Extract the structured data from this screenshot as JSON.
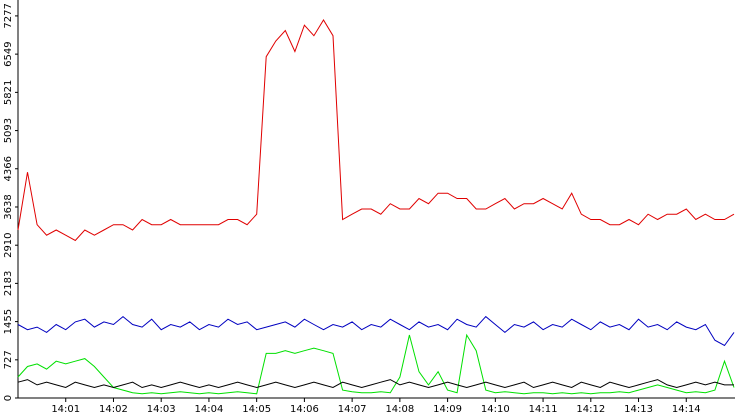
{
  "chart_data": {
    "type": "line",
    "categories": [
      null,
      null,
      null,
      null,
      null,
      "14:01",
      null,
      null,
      null,
      null,
      "14:02",
      null,
      null,
      null,
      null,
      "14:03",
      null,
      null,
      null,
      null,
      "14:04",
      null,
      null,
      null,
      null,
      "14:05",
      null,
      null,
      null,
      null,
      "14:06",
      null,
      null,
      null,
      null,
      "14:07",
      null,
      null,
      null,
      null,
      "14:08",
      null,
      null,
      null,
      null,
      "14:09",
      null,
      null,
      null,
      null,
      "14:10",
      null,
      null,
      null,
      null,
      "14:11",
      null,
      null,
      null,
      null,
      "14:12",
      null,
      null,
      null,
      null,
      "14:13",
      null,
      null,
      null,
      null,
      "14:14",
      null,
      null,
      null,
      null,
      null
    ],
    "series": [
      {
        "color": "#e00000",
        "values": [
          3200,
          4300,
          3300,
          3100,
          3200,
          3100,
          3000,
          3200,
          3100,
          3200,
          3300,
          3300,
          3200,
          3400,
          3300,
          3300,
          3400,
          3300,
          3300,
          3300,
          3300,
          3300,
          3400,
          3400,
          3300,
          3500,
          6500,
          6800,
          7000,
          6600,
          7100,
          6900,
          7200,
          6900,
          3400,
          3500,
          3600,
          3600,
          3500,
          3700,
          3600,
          3600,
          3800,
          3700,
          3900,
          3900,
          3800,
          3800,
          3600,
          3600,
          3700,
          3800,
          3600,
          3700,
          3700,
          3800,
          3700,
          3600,
          3900,
          3500,
          3400,
          3400,
          3300,
          3300,
          3400,
          3300,
          3500,
          3400,
          3500,
          3500,
          3600,
          3400,
          3500,
          3400,
          3400,
          3500
        ]
      },
      {
        "color": "#0000c0",
        "values": [
          1400,
          1300,
          1350,
          1250,
          1400,
          1300,
          1450,
          1500,
          1350,
          1450,
          1400,
          1550,
          1400,
          1350,
          1500,
          1300,
          1400,
          1350,
          1450,
          1300,
          1400,
          1350,
          1500,
          1400,
          1450,
          1300,
          1350,
          1400,
          1450,
          1350,
          1500,
          1400,
          1300,
          1400,
          1350,
          1450,
          1300,
          1400,
          1350,
          1500,
          1400,
          1300,
          1450,
          1350,
          1400,
          1300,
          1500,
          1400,
          1350,
          1550,
          1400,
          1250,
          1400,
          1350,
          1450,
          1300,
          1400,
          1350,
          1500,
          1400,
          1300,
          1450,
          1350,
          1400,
          1300,
          1500,
          1350,
          1400,
          1300,
          1450,
          1350,
          1300,
          1400,
          1100,
          1000,
          1250
        ]
      },
      {
        "color": "#00e000",
        "values": [
          400,
          600,
          650,
          550,
          700,
          650,
          700,
          750,
          600,
          400,
          200,
          150,
          100,
          80,
          100,
          80,
          100,
          120,
          100,
          80,
          100,
          80,
          100,
          120,
          100,
          80,
          850,
          850,
          900,
          850,
          900,
          950,
          900,
          850,
          150,
          120,
          100,
          100,
          120,
          100,
          400,
          1200,
          500,
          250,
          500,
          150,
          100,
          1200,
          900,
          150,
          100,
          120,
          100,
          80,
          100,
          100,
          80,
          100,
          80,
          100,
          80,
          100,
          100,
          120,
          100,
          150,
          200,
          250,
          200,
          150,
          100,
          120,
          100,
          150,
          700,
          200
        ]
      },
      {
        "color": "#000000",
        "values": [
          300,
          350,
          250,
          300,
          250,
          200,
          300,
          250,
          200,
          250,
          200,
          250,
          300,
          200,
          250,
          200,
          250,
          300,
          250,
          200,
          250,
          200,
          250,
          300,
          250,
          200,
          250,
          300,
          250,
          200,
          250,
          300,
          250,
          200,
          300,
          250,
          200,
          250,
          300,
          350,
          250,
          300,
          250,
          200,
          250,
          300,
          250,
          200,
          250,
          300,
          250,
          200,
          250,
          300,
          200,
          250,
          300,
          250,
          200,
          300,
          250,
          200,
          300,
          250,
          200,
          250,
          300,
          350,
          250,
          200,
          250,
          300,
          250,
          300,
          250,
          250
        ]
      }
    ],
    "ylim": [
      0,
      7580
    ],
    "yticks": [
      0,
      727,
      1455,
      2183,
      2910,
      3638,
      4366,
      5093,
      5821,
      6549,
      7277
    ],
    "grid": false
  }
}
